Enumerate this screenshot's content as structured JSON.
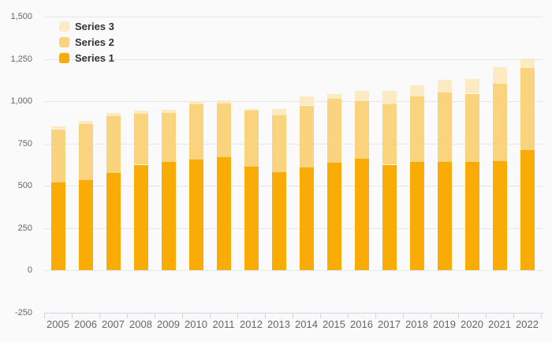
{
  "chart_data": {
    "type": "bar",
    "stacked": true,
    "title": "",
    "xlabel": "",
    "ylabel": "",
    "categories": [
      "2005",
      "2006",
      "2007",
      "2008",
      "2009",
      "2010",
      "2011",
      "2012",
      "2013",
      "2014",
      "2015",
      "2016",
      "2017",
      "2018",
      "2019",
      "2020",
      "2021",
      "2022"
    ],
    "series": [
      {
        "name": "Series 1",
        "color": "#F8AC05",
        "values": [
          520,
          535,
          575,
          625,
          640,
          655,
          670,
          615,
          580,
          610,
          635,
          660,
          625,
          640,
          640,
          640,
          645,
          710
        ]
      },
      {
        "name": "Series 2",
        "color": "#FAD37E",
        "values": [
          315,
          330,
          335,
          300,
          290,
          325,
          315,
          330,
          335,
          365,
          380,
          340,
          355,
          390,
          410,
          405,
          460,
          485
        ]
      },
      {
        "name": "Series 3",
        "color": "#FCEAC2",
        "values": [
          15,
          20,
          20,
          20,
          20,
          20,
          20,
          10,
          40,
          55,
          30,
          60,
          80,
          65,
          75,
          85,
          95,
          60
        ]
      }
    ],
    "y_axis": {
      "min": -250,
      "max": 1500,
      "tick_interval": 250,
      "tick_values": [
        -250,
        0,
        250,
        500,
        750,
        1000,
        1250,
        1500
      ],
      "tick_labels": [
        "-250",
        "0",
        "250",
        "500",
        "750",
        "1,000",
        "1,250",
        "1,500"
      ]
    },
    "legend": {
      "position": "top-left",
      "order_top_to_bottom": [
        "Series 3",
        "Series 2",
        "Series 1"
      ]
    },
    "grid": true
  },
  "colors": {
    "background": "#FAFAFA",
    "gridline": "#E6E6E6",
    "axis_line": "#CCD6EB",
    "axis_label": "#666666",
    "legend_text": "#333333"
  }
}
